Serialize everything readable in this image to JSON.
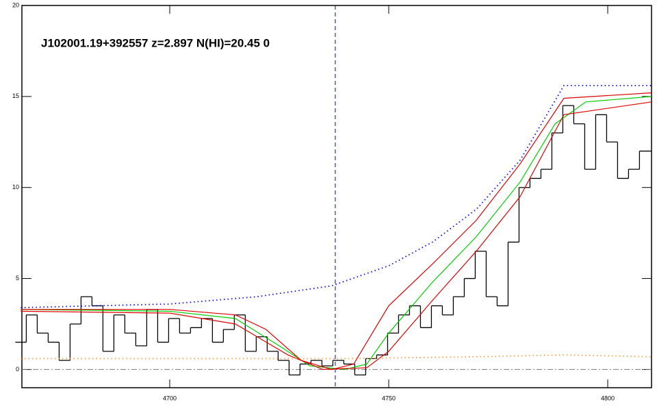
{
  "chart_data": {
    "type": "line",
    "title": "J102001.19+392557 z=2.897 N(HI)=20.45 0",
    "xlim": [
      4666.25,
      4810
    ],
    "ylim": [
      -1,
      20
    ],
    "xticks": [
      4700,
      4750,
      4800
    ],
    "yticks": [
      0,
      5,
      10,
      15,
      20
    ],
    "vline": 4737.8,
    "hline": 0,
    "series": [
      {
        "color": "#000000",
        "style": "step",
        "x": [
          4666,
          4668.5,
          4671,
          4673.5,
          4676,
          4678.5,
          4681,
          4683.5,
          4686,
          4688.5,
          4691,
          4693.5,
          4696,
          4698.5,
          4701,
          4703.5,
          4706,
          4708.5,
          4711,
          4713.5,
          4716,
          4718.5,
          4721,
          4723.5,
          4726,
          4728.5,
          4731,
          4733.5,
          4736,
          4738.5,
          4741,
          4743.5,
          4746,
          4748.5,
          4751,
          4753.5,
          4756,
          4758.5,
          4761,
          4763.5,
          4766,
          4768.5,
          4771,
          4773.5,
          4776,
          4778.5,
          4781,
          4783.5,
          4786,
          4788.5,
          4791,
          4793.5,
          4796,
          4798.5,
          4801,
          4803.5,
          4806,
          4808.5
        ],
        "values": [
          1.5,
          3.0,
          2.0,
          1.5,
          0.5,
          2.5,
          4.0,
          3.5,
          1.0,
          3.0,
          2.0,
          1.3,
          3.3,
          1.5,
          2.8,
          2.0,
          2.3,
          2.8,
          1.5,
          2.2,
          3.0,
          1.0,
          1.8,
          1.0,
          0.5,
          -0.3,
          0.3,
          0.5,
          0.2,
          0.5,
          0.3,
          -0.3,
          0.6,
          0.8,
          2.0,
          3.0,
          3.5,
          2.3,
          3.5,
          3.0,
          4.0,
          5.0,
          6.5,
          4.0,
          3.5,
          7.0,
          10.0,
          10.5,
          11.0,
          13.0,
          14.5,
          13.5,
          11.0,
          14.0,
          12.5,
          10.5,
          11.0,
          12.0
        ]
      },
      {
        "color": "#0000ff",
        "style": "dotted",
        "x": [
          4666,
          4700,
          4720,
          4737,
          4750,
          4760,
          4770,
          4780,
          4790,
          4810
        ],
        "values": [
          3.4,
          3.6,
          4.0,
          4.6,
          5.7,
          7.0,
          8.8,
          11.5,
          15.6,
          15.6
        ]
      },
      {
        "color": "#00cc00",
        "style": "solid",
        "x": [
          4666,
          4700,
          4715,
          4725,
          4732,
          4740,
          4745,
          4750,
          4760,
          4770,
          4780,
          4788,
          4795,
          4810
        ],
        "values": [
          3.3,
          3.2,
          2.8,
          1.3,
          0.2,
          0,
          0.3,
          2.0,
          4.8,
          7.3,
          10.3,
          13.5,
          14.7,
          15.0
        ]
      },
      {
        "color": "#dd0000",
        "style": "solid",
        "x": [
          4666,
          4700,
          4715,
          4722,
          4730,
          4737,
          4742,
          4750,
          4760,
          4770,
          4780,
          4790,
          4810
        ],
        "values": [
          3.3,
          3.3,
          3.0,
          2.2,
          0.5,
          0,
          0.3,
          3.5,
          5.8,
          8.2,
          11.3,
          14.9,
          15.2
        ]
      },
      {
        "color": "#dd0000",
        "style": "solid",
        "x": [
          4666,
          4700,
          4715,
          4727,
          4735,
          4745,
          4750,
          4760,
          4770,
          4780,
          4790,
          4810
        ],
        "values": [
          3.2,
          3.1,
          2.5,
          0.8,
          0,
          0.1,
          1.0,
          3.8,
          6.5,
          9.5,
          14.0,
          14.7
        ]
      },
      {
        "color": "#ff9933",
        "style": "dotted",
        "x": [
          4666,
          4700,
          4740,
          4770,
          4790,
          4810
        ],
        "values": [
          0.6,
          0.6,
          0.6,
          0.7,
          0.8,
          0.7
        ]
      }
    ]
  }
}
